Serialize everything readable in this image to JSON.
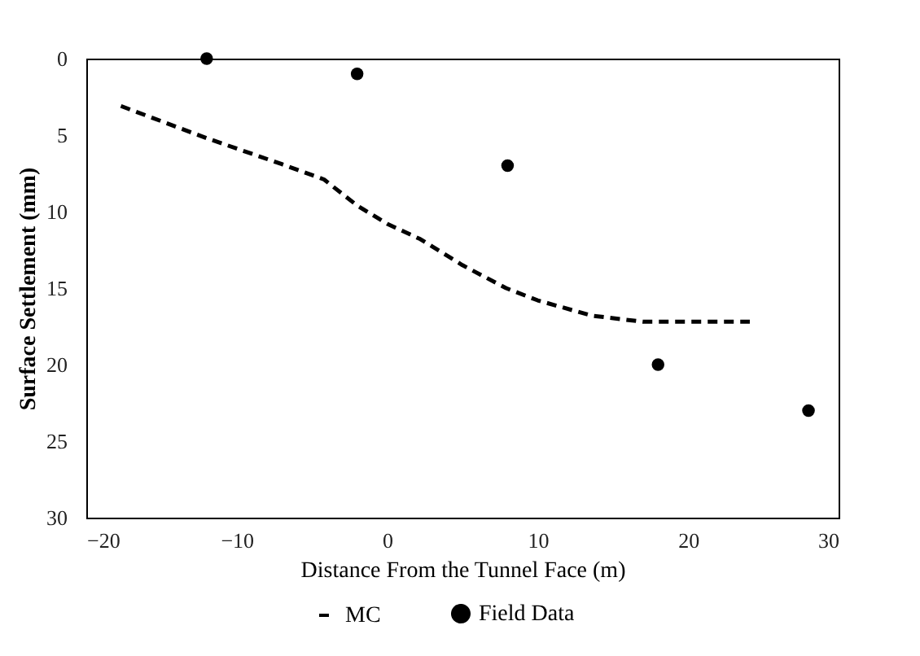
{
  "chart_data": {
    "type": "line",
    "xlabel": "Distance From the Tunnel Face (m)",
    "ylabel": "Surface Settlement (mm)",
    "xlim": [
      -20,
      30
    ],
    "xticks": [
      -20,
      -10,
      0,
      10,
      20,
      30
    ],
    "ylim": [
      30,
      0
    ],
    "yticks": [
      0,
      5,
      10,
      15,
      20,
      25,
      30
    ],
    "grid": false,
    "legend": "bottom",
    "series": [
      {
        "name": "MC",
        "line_style": "dashed",
        "color": "#000000",
        "x": [
          -17.7,
          -12,
          -7,
          -4.2,
          -2,
          0,
          2.2,
          5,
          7.9,
          10,
          13.6,
          17,
          20,
          24.1
        ],
        "values": [
          3.1,
          5.2,
          6.9,
          7.9,
          9.6,
          10.8,
          11.8,
          13.5,
          15.0,
          15.8,
          16.8,
          17.2,
          17.2,
          17.2
        ]
      },
      {
        "name": "Field Data",
        "type": "scatter",
        "marker": "circle",
        "color": "#000000",
        "x": [
          -12,
          -2,
          8,
          18,
          28
        ],
        "values": [
          0,
          1,
          7,
          20,
          23
        ]
      }
    ]
  }
}
